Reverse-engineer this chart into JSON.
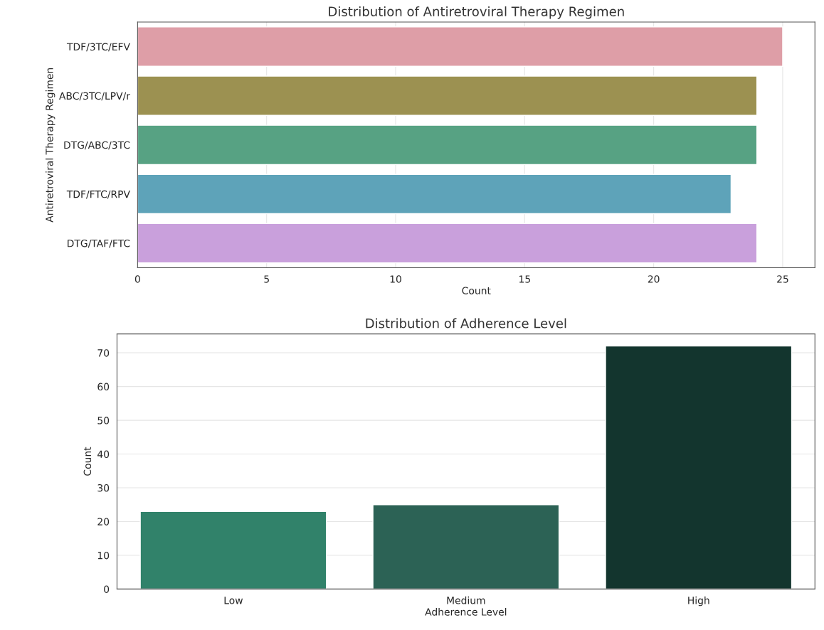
{
  "chart_data": [
    {
      "type": "bar",
      "orientation": "horizontal",
      "title": "Distribution of Antiretroviral Therapy Regimen",
      "xlabel": "Count",
      "ylabel": "Antiretroviral Therapy Regimen",
      "categories": [
        "TDF/3TC/EFV",
        "ABC/3TC/LPV/r",
        "DTG/ABC/3TC",
        "TDF/FTC/RPV",
        "DTG/TAF/FTC"
      ],
      "values": [
        25,
        24,
        24,
        23,
        24
      ],
      "colors": [
        "#e8949f",
        "#a89a45",
        "#4aae85",
        "#4fabc8",
        "#cc96e6"
      ],
      "xlim": [
        0,
        26.25
      ],
      "xticks": [
        0,
        5,
        10,
        15,
        20,
        25
      ],
      "grid": "x"
    },
    {
      "type": "bar",
      "title": "Distribution of Adherence Level",
      "xlabel": "Adherence Level",
      "ylabel": "Count",
      "categories": [
        "Low",
        "Medium",
        "High"
      ],
      "values": [
        23,
        25,
        72
      ],
      "colors": [
        "#23906f",
        "#236b5a",
        "#0d3b31"
      ],
      "ylim": [
        0,
        75.6
      ],
      "yticks": [
        0,
        10,
        20,
        30,
        40,
        50,
        60,
        70
      ],
      "grid": "y"
    }
  ]
}
